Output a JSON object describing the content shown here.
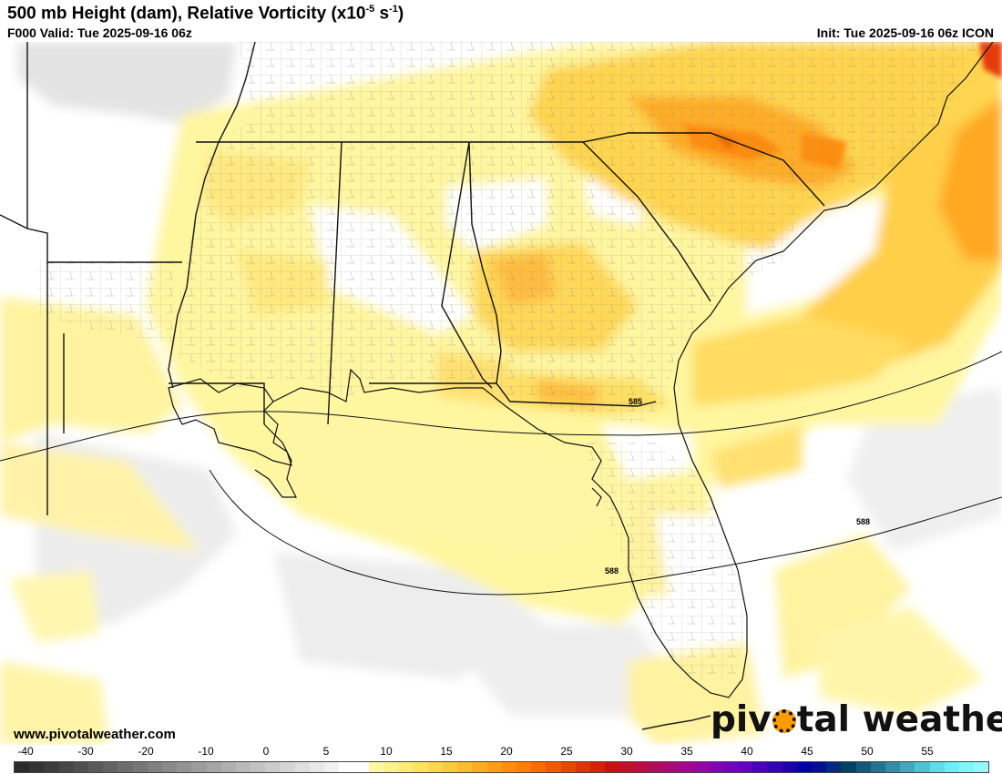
{
  "header": {
    "title_prefix": "500 mb Height (dam), Relative Vorticity (x10",
    "title_exp1": "-5",
    "title_mid": " s",
    "title_exp2": "-1",
    "title_suffix": ")",
    "valid": "F000 Valid: Tue 2025-09-16 06z",
    "init": "Init: Tue 2025-09-16 06z ICON"
  },
  "map": {
    "contour_labels": [
      "585",
      "588",
      "588"
    ],
    "colors": {
      "land_outline": "#5a5a5a",
      "state_border": "#111111",
      "county_border": "#8a8a8a",
      "contour": "#111111"
    }
  },
  "footer": {
    "website": "www.pivotalweather.com",
    "logo_text_1": "piv",
    "logo_text_2": "tal weather"
  },
  "colorbar": {
    "tick_labels": [
      "-40",
      "-30",
      "-20",
      "-10",
      "0",
      "5",
      "10",
      "15",
      "20",
      "25",
      "30",
      "35",
      "40",
      "45",
      "50",
      "55"
    ],
    "colors": [
      "#2b2b2b",
      "#343434",
      "#3d3d3d",
      "#474747",
      "#505050",
      "#5a5a5a",
      "#636363",
      "#6d6d6d",
      "#767676",
      "#808080",
      "#898989",
      "#939393",
      "#9c9c9c",
      "#a6a6a6",
      "#afafaf",
      "#b9b9b9",
      "#c2c2c2",
      "#cccccc",
      "#d5d5d5",
      "#dfdfdf",
      "#e8e8e8",
      "#f0f0f0",
      "#ffffff",
      "#ffffff",
      "#fff8a0",
      "#fff28a",
      "#ffeb76",
      "#ffe262",
      "#ffd650",
      "#ffc940",
      "#ffbb30",
      "#ffac22",
      "#ff9d16",
      "#ff8e0c",
      "#ff7e04",
      "#fa6c00",
      "#f05a00",
      "#e64800",
      "#dc3600",
      "#d22400",
      "#c81212",
      "#c0102a",
      "#b80e44",
      "#b00c5e",
      "#a80a78",
      "#a00892",
      "#9406a6",
      "#8404b0",
      "#7402ba",
      "#6400c4",
      "#4c00bc",
      "#3400b4",
      "#1c00ac",
      "#0400a4",
      "#001090",
      "#00287c",
      "#004068",
      "#105a7a",
      "#207490",
      "#308ea6",
      "#40a8bc",
      "#50c2d2",
      "#60dce8",
      "#70eef8",
      "#80f6fc",
      "#90fcff"
    ]
  }
}
